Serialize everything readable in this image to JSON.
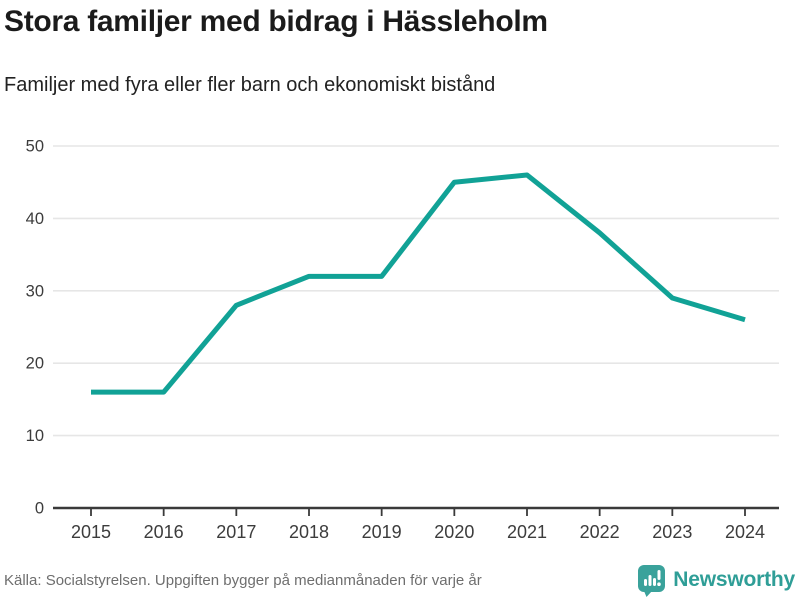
{
  "header": {
    "title": "Stora familjer med bidrag i Hässleholm",
    "subtitle": "Familjer med fyra eller fler barn och ekonomiskt bistånd"
  },
  "chart_data": {
    "type": "line",
    "title": "Stora familjer med bidrag i Hässleholm",
    "subtitle": "Familjer med fyra eller fler barn och ekonomiskt bistånd",
    "x": [
      "2015",
      "2016",
      "2017",
      "2018",
      "2019",
      "2020",
      "2021",
      "2022",
      "2023",
      "2024"
    ],
    "series": [
      {
        "name": "Familjer med fyra eller fler barn och ekonomiskt bistånd",
        "values": [
          16,
          16,
          28,
          32,
          32,
          45,
          46,
          38,
          29,
          26
        ]
      }
    ],
    "xlabel": "",
    "ylabel": "",
    "ylim": [
      0,
      50
    ],
    "yticks": [
      0,
      10,
      20,
      30,
      40,
      50
    ],
    "grid": "horizontal-light",
    "legend": "none",
    "source": "Källa: Socialstyrelsen. Uppgiften bygger på medianmånaden för varje år"
  },
  "footer": {
    "source": "Källa: Socialstyrelsen. Uppgiften bygger på medianmånaden för varje år",
    "brand": "Newsworthy"
  },
  "colors": {
    "line": "#11a296",
    "grid": "#e6e6e6",
    "axis": "#3a3a3a",
    "tick_label": "#3c3c3c",
    "title_text": "#1b1b1b",
    "muted_text": "#6e6e6e",
    "brand": "#2f9e97"
  }
}
